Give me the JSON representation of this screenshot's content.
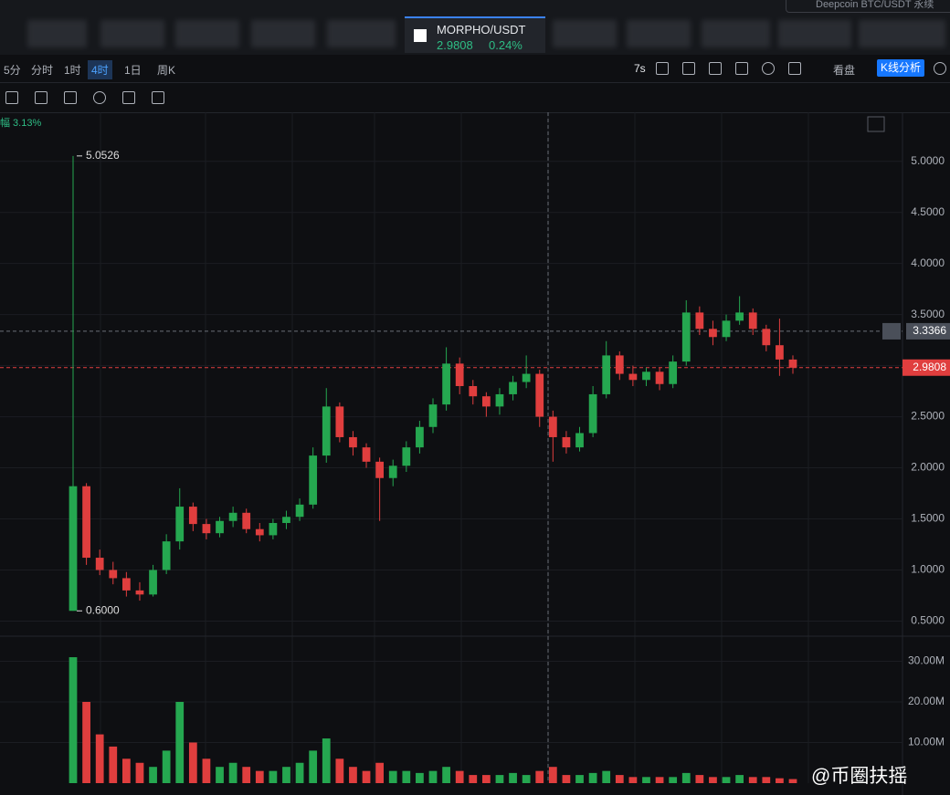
{
  "search": "Deepcoin BTC/USDT 永续",
  "tab": {
    "symbol": "MORPHO/USDT",
    "price": "2.9808",
    "change": "0.24%"
  },
  "intervals": [
    "5分",
    "分时",
    "1时",
    "4时",
    "1日",
    "周K"
  ],
  "active_interval": 3,
  "tools": {
    "refresh": "7s",
    "view": "看盘",
    "analysis": "K线分析"
  },
  "amplitude": "幅 3.13%",
  "watermark": "@币圈扶摇",
  "chart_data": {
    "type": "candlestick",
    "up_color": "#25a750",
    "down_color": "#e03e3e",
    "ylim": [
      0.37,
      5.48
    ],
    "yticks": [
      {
        "value": 0.5,
        "label": "0.5000"
      },
      {
        "value": 1,
        "label": "1.0000"
      },
      {
        "value": 1.5,
        "label": "1.5000"
      },
      {
        "value": 2,
        "label": "2.0000"
      },
      {
        "value": 2.5,
        "label": "2.5000"
      },
      {
        "value": 3,
        "label": "3.0000"
      },
      {
        "value": 3.5,
        "label": "3.5000"
      },
      {
        "value": 4,
        "label": "4.0000"
      },
      {
        "value": 4.5,
        "label": "4.5000"
      },
      {
        "value": 5,
        "label": "5.0000"
      }
    ],
    "vlim": [
      0,
      35.5
    ],
    "vticks": [
      {
        "value": 10,
        "label": "10.00M"
      },
      {
        "value": 20,
        "label": "20.00M"
      },
      {
        "value": 30,
        "label": "30.00M"
      }
    ],
    "high": 5.0526,
    "low": {
      "value": 0.6,
      "label": "0.6000"
    },
    "last_price": 2.9808,
    "crosshair": 3.3366,
    "candles": [
      [
        0.6,
        5.0526,
        0.6,
        1.82
      ],
      [
        1.82,
        1.85,
        1.05,
        1.12
      ],
      [
        1.12,
        1.2,
        0.95,
        1.0
      ],
      [
        1.0,
        1.08,
        0.86,
        0.92
      ],
      [
        0.92,
        0.98,
        0.74,
        0.8
      ],
      [
        0.8,
        0.88,
        0.7,
        0.76
      ],
      [
        0.76,
        1.05,
        0.74,
        1.0
      ],
      [
        1.0,
        1.35,
        0.96,
        1.28
      ],
      [
        1.28,
        1.8,
        1.2,
        1.62
      ],
      [
        1.62,
        1.66,
        1.38,
        1.45
      ],
      [
        1.45,
        1.5,
        1.3,
        1.36
      ],
      [
        1.36,
        1.52,
        1.32,
        1.48
      ],
      [
        1.48,
        1.62,
        1.42,
        1.56
      ],
      [
        1.56,
        1.6,
        1.36,
        1.4
      ],
      [
        1.4,
        1.46,
        1.28,
        1.34
      ],
      [
        1.34,
        1.5,
        1.3,
        1.46
      ],
      [
        1.46,
        1.58,
        1.4,
        1.52
      ],
      [
        1.52,
        1.7,
        1.48,
        1.64
      ],
      [
        1.64,
        2.2,
        1.6,
        2.12
      ],
      [
        2.12,
        2.78,
        2.05,
        2.6
      ],
      [
        2.6,
        2.64,
        2.25,
        2.3
      ],
      [
        2.3,
        2.36,
        2.12,
        2.2
      ],
      [
        2.2,
        2.24,
        2.0,
        2.06
      ],
      [
        2.06,
        2.1,
        1.48,
        1.9
      ],
      [
        1.9,
        2.08,
        1.82,
        2.02
      ],
      [
        2.02,
        2.26,
        1.96,
        2.2
      ],
      [
        2.2,
        2.46,
        2.14,
        2.4
      ],
      [
        2.4,
        2.68,
        2.34,
        2.62
      ],
      [
        2.62,
        3.18,
        2.56,
        3.02
      ],
      [
        3.02,
        3.08,
        2.72,
        2.8
      ],
      [
        2.8,
        2.86,
        2.62,
        2.7
      ],
      [
        2.7,
        2.74,
        2.5,
        2.6
      ],
      [
        2.6,
        2.78,
        2.52,
        2.72
      ],
      [
        2.72,
        2.9,
        2.66,
        2.84
      ],
      [
        2.84,
        3.1,
        2.78,
        2.92
      ],
      [
        2.92,
        2.96,
        2.4,
        2.5
      ],
      [
        2.5,
        2.56,
        2.06,
        2.3
      ],
      [
        2.3,
        2.36,
        2.14,
        2.2
      ],
      [
        2.2,
        2.4,
        2.16,
        2.34
      ],
      [
        2.34,
        2.8,
        2.3,
        2.72
      ],
      [
        2.72,
        3.24,
        2.68,
        3.1
      ],
      [
        3.1,
        3.14,
        2.86,
        2.92
      ],
      [
        2.92,
        3.0,
        2.8,
        2.86
      ],
      [
        2.86,
        2.98,
        2.8,
        2.94
      ],
      [
        2.94,
        2.98,
        2.76,
        2.82
      ],
      [
        2.82,
        3.1,
        2.78,
        3.04
      ],
      [
        3.04,
        3.64,
        3.0,
        3.52
      ],
      [
        3.52,
        3.58,
        3.3,
        3.36
      ],
      [
        3.36,
        3.44,
        3.2,
        3.28
      ],
      [
        3.28,
        3.5,
        3.24,
        3.44
      ],
      [
        3.44,
        3.68,
        3.4,
        3.52
      ],
      [
        3.52,
        3.56,
        3.3,
        3.36
      ],
      [
        3.36,
        3.4,
        3.14,
        3.2
      ],
      [
        3.2,
        3.46,
        2.9,
        3.06
      ],
      [
        3.06,
        3.1,
        2.92,
        2.98
      ]
    ],
    "volumes": [
      31,
      20,
      12,
      9,
      6,
      5,
      4,
      8,
      20,
      10,
      6,
      4,
      5,
      4,
      3,
      3,
      4,
      5,
      8,
      11,
      6,
      4,
      3,
      5,
      3,
      3,
      2.5,
      3,
      4,
      3,
      2,
      2,
      2,
      2.5,
      2,
      3,
      4,
      2,
      2,
      2.5,
      3,
      2,
      1.5,
      1.5,
      1.5,
      1.5,
      2.5,
      2,
      1.5,
      1.5,
      2,
      1.5,
      1.5,
      1.2,
      1
    ]
  }
}
